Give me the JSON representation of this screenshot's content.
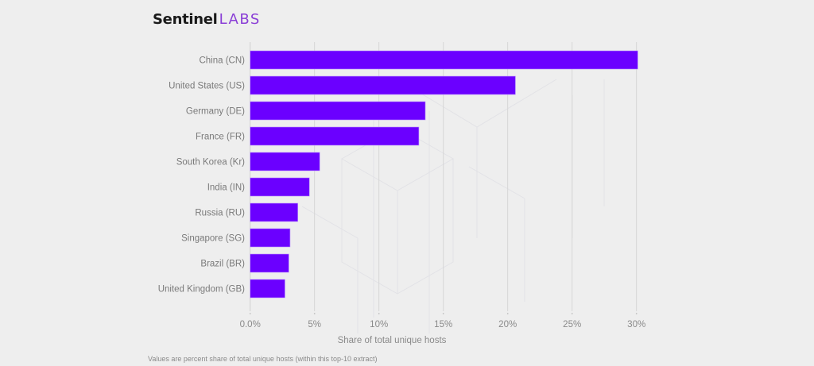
{
  "brand": {
    "name_part1": "Sentinel",
    "name_part2": "LABS",
    "accent": "#8a3ed6"
  },
  "chart_data": {
    "type": "bar",
    "orientation": "horizontal",
    "categories": [
      "China (CN)",
      "United States (US)",
      "Germany (DE)",
      "France (FR)",
      "South Korea (Kr)",
      "India (IN)",
      "Russia (RU)",
      "Singapore (SG)",
      "Brazil (BR)",
      "United Kingdom (GB)"
    ],
    "values": [
      30.1,
      20.6,
      13.6,
      13.1,
      5.4,
      4.6,
      3.7,
      3.1,
      3.0,
      2.7
    ],
    "title": "",
    "xlabel": "Share of total unique hosts",
    "ylabel": "",
    "xlim": [
      0,
      30
    ],
    "xticks": [
      0,
      5,
      10,
      15,
      20,
      25,
      30
    ],
    "xtick_labels": [
      "0.0%",
      "5%",
      "10%",
      "15%",
      "20%",
      "25%",
      "30%"
    ],
    "grid": "vertical",
    "bar_color": "#6b00ff",
    "footnote": "Values are percent share of total unique hosts (within this top-10 extract)"
  }
}
